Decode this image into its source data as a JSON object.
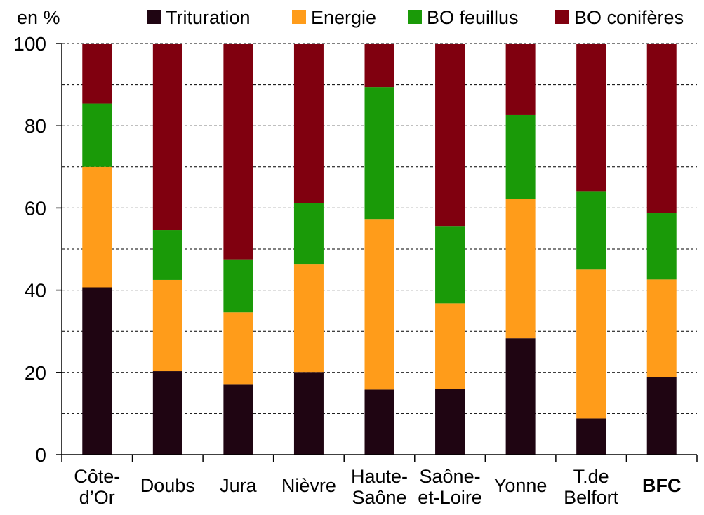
{
  "chart_data": {
    "type": "bar",
    "stacked": true,
    "unit_label": "en %",
    "ylim": [
      0,
      100
    ],
    "yticks": [
      0,
      20,
      40,
      60,
      80,
      100
    ],
    "grid": "horizontal dashed",
    "legend_position": "top",
    "categories": [
      {
        "lines": [
          "Côte-",
          "d’Or"
        ],
        "bold": false
      },
      {
        "lines": [
          "Doubs"
        ],
        "bold": false
      },
      {
        "lines": [
          "Jura"
        ],
        "bold": false
      },
      {
        "lines": [
          "Nièvre"
        ],
        "bold": false
      },
      {
        "lines": [
          "Haute-",
          "Saône"
        ],
        "bold": false
      },
      {
        "lines": [
          "Saône-",
          "et-Loire"
        ],
        "bold": false
      },
      {
        "lines": [
          "Yonne"
        ],
        "bold": false
      },
      {
        "lines": [
          "T.de",
          "Belfort"
        ],
        "bold": false
      },
      {
        "lines": [
          "BFC"
        ],
        "bold": true
      }
    ],
    "series": [
      {
        "name": "Trituration",
        "color": "#1f0512",
        "values": [
          40.7,
          20.3,
          17.0,
          20.1,
          15.8,
          16.0,
          28.3,
          8.8,
          18.8
        ]
      },
      {
        "name": "Energie",
        "color": "#ff9c1a",
        "values": [
          29.3,
          22.2,
          17.6,
          26.3,
          41.5,
          20.8,
          33.9,
          36.2,
          23.8
        ]
      },
      {
        "name": "BO feuillus",
        "color": "#1a9a08",
        "values": [
          15.4,
          12.1,
          12.9,
          14.7,
          32.1,
          18.8,
          20.4,
          19.1,
          16.1
        ]
      },
      {
        "name": "BO conifères",
        "color": "#80000f",
        "values": [
          14.6,
          45.4,
          52.5,
          38.9,
          10.6,
          44.4,
          17.4,
          35.9,
          41.3
        ]
      }
    ]
  }
}
